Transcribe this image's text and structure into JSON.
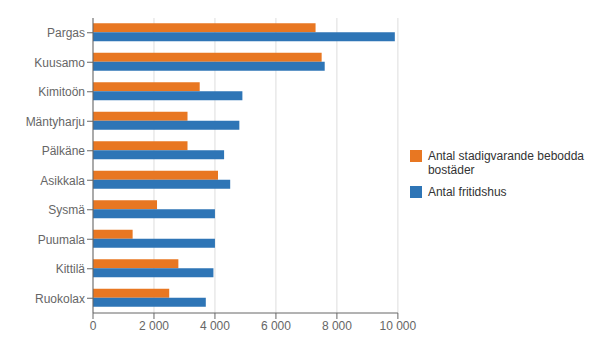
{
  "chart_data": {
    "type": "bar",
    "orientation": "horizontal",
    "categories": [
      "Pargas",
      "Kuusamo",
      "Kimitoön",
      "Mäntyharju",
      "Pälkäne",
      "Asikkala",
      "Sysmä",
      "Puumala",
      "Kittilä",
      "Ruokolax"
    ],
    "series": [
      {
        "name": "Antal stadigvarande bebodda\nbostäder",
        "color": "#E87722",
        "values": [
          7300,
          7500,
          3500,
          3100,
          3100,
          4100,
          2100,
          1300,
          2800,
          2500
        ]
      },
      {
        "name": "Antal fritidshus",
        "color": "#2E75B6",
        "values": [
          9900,
          7600,
          4900,
          4800,
          4300,
          4500,
          4000,
          4000,
          3950,
          3700
        ]
      }
    ],
    "xlim": [
      0,
      10000
    ],
    "xticks": [
      0,
      {
        "value": 2000,
        "label": "2 000"
      },
      {
        "value": 4000,
        "label": "4 000"
      },
      {
        "value": 6000,
        "label": "6 000"
      },
      {
        "value": 8000,
        "label": "8 000"
      },
      {
        "value": 10000,
        "label": "10 000"
      }
    ],
    "grid": true,
    "legend": "right"
  }
}
